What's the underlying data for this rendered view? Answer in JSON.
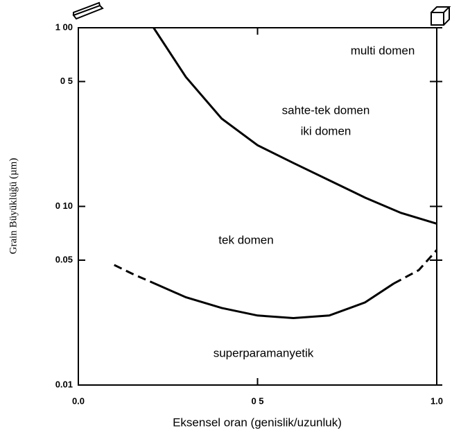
{
  "chart_data": {
    "type": "line",
    "xlabel": "Eksensel oran (genislik/uzunluk)",
    "ylabel": "Grain Büyüklüğü (µm)",
    "log_y": true,
    "xlim": [
      0,
      1
    ],
    "ylim": [
      0.01,
      1
    ],
    "xticks": [
      {
        "value": 0,
        "label": "0.0"
      },
      {
        "value": 0.5,
        "label": "0 5"
      },
      {
        "value": 1,
        "label": "1.0"
      }
    ],
    "yticks": [
      {
        "value": 1,
        "label": "1 00"
      },
      {
        "value": 0.5,
        "label": "0 5"
      },
      {
        "value": 0.1,
        "label": "0 10"
      },
      0.05,
      0.01
    ],
    "color": "#000000",
    "annotations": [
      "multi domen",
      "sahte-tek domen",
      "iki domen",
      "tek domen",
      "superparamanyetik"
    ],
    "series": [
      {
        "dashed": false,
        "x": [
          0.21,
          0.3,
          0.4,
          0.5,
          0.6,
          0.7,
          0.8,
          0.9,
          1.0
        ],
        "values": [
          1.0,
          0.53,
          0.31,
          0.22,
          0.175,
          0.14,
          0.112,
          0.092,
          0.08
        ]
      },
      {
        "dashed": true,
        "x": [
          0.1,
          0.15,
          0.2
        ],
        "values": [
          0.047,
          0.042,
          0.038
        ]
      },
      {
        "dashed": false,
        "x": [
          0.2,
          0.3,
          0.4,
          0.5,
          0.6,
          0.7,
          0.8,
          0.88
        ],
        "values": [
          0.038,
          0.031,
          0.027,
          0.0245,
          0.0237,
          0.0245,
          0.029,
          0.037
        ]
      },
      {
        "dashed": true,
        "x": [
          0.88,
          0.95,
          1.0
        ],
        "values": [
          0.037,
          0.044,
          0.057
        ]
      }
    ]
  }
}
